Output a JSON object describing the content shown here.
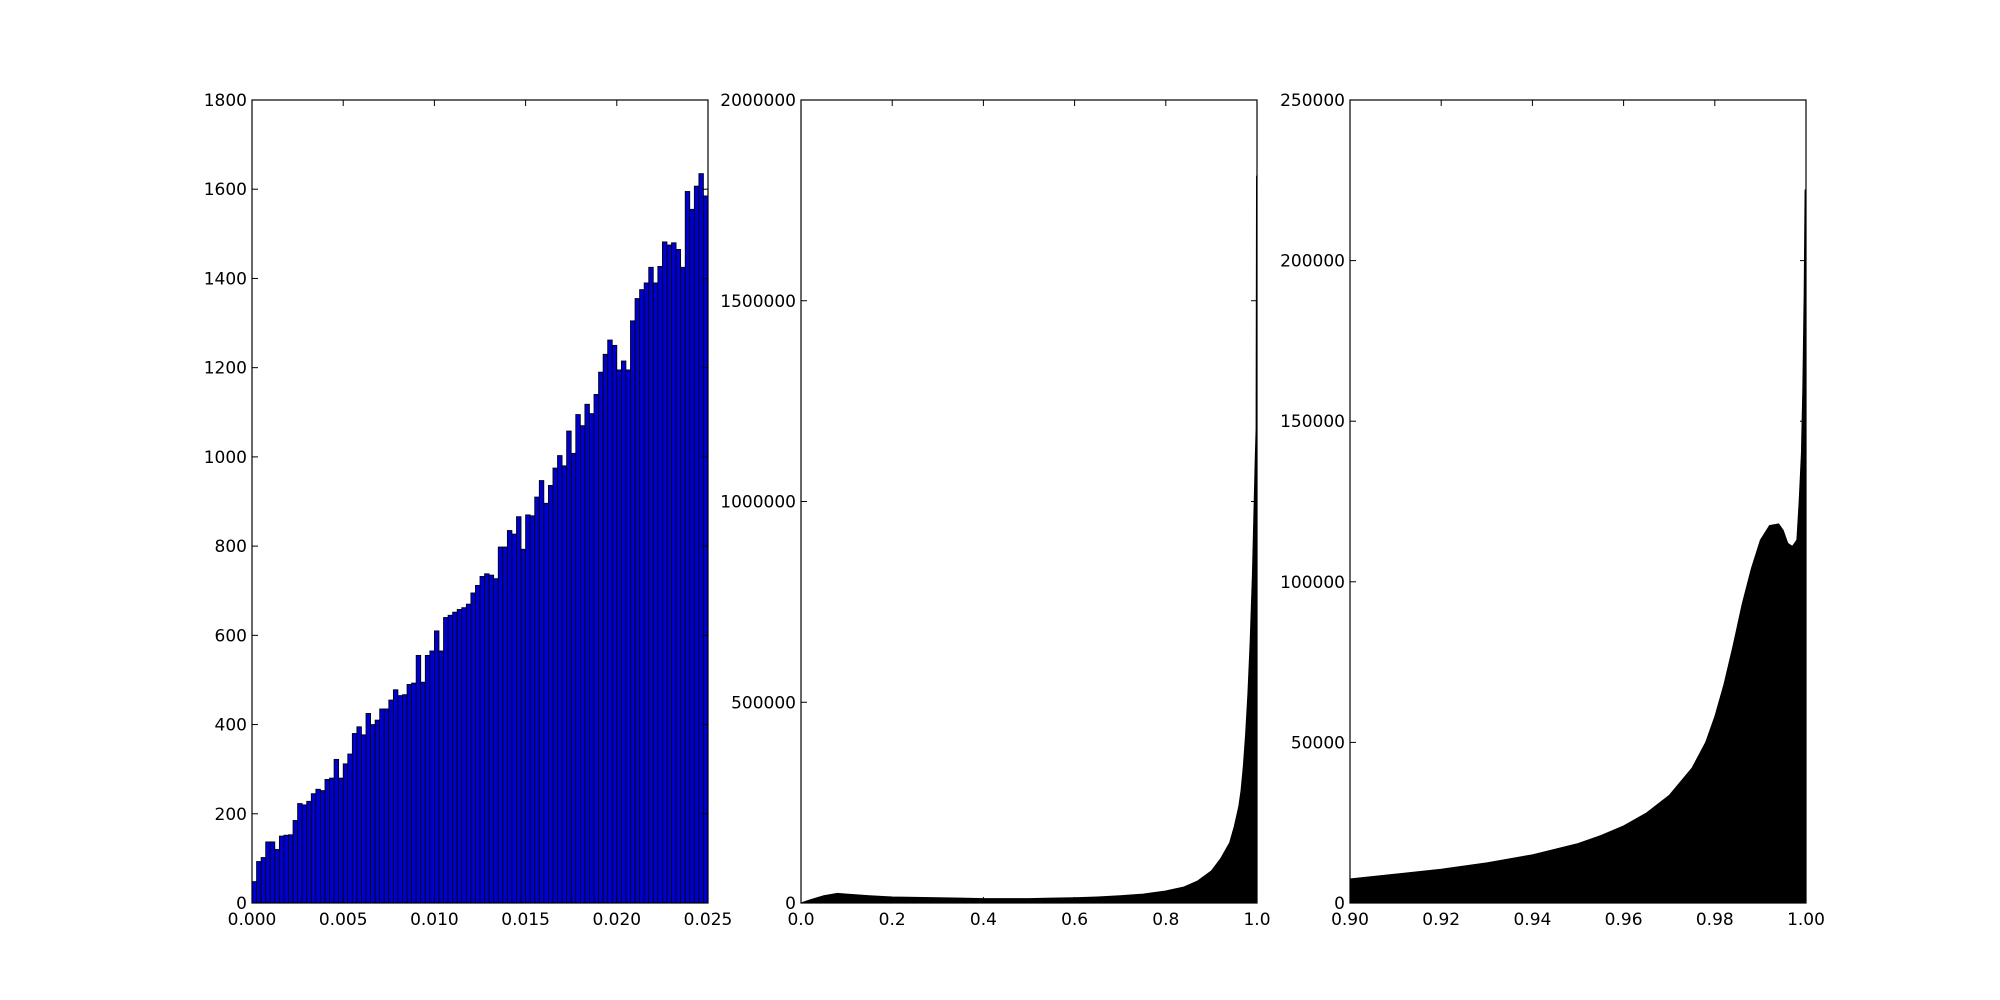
{
  "chart_data": [
    {
      "type": "bar",
      "title": "",
      "xlabel": "",
      "ylabel": "",
      "xlim": [
        0.0,
        0.025
      ],
      "ylim": [
        0,
        1800
      ],
      "xticks": [
        "0.000",
        "0.005",
        "0.010",
        "0.015",
        "0.020",
        "0.025"
      ],
      "yticks": [
        "0",
        "200",
        "400",
        "600",
        "800",
        "1000",
        "1200",
        "1400",
        "1600",
        "1800"
      ],
      "bin_width": 0.00025,
      "bar_color": "#0000cc",
      "edge_color": "#000000",
      "values": [
        48,
        93,
        102,
        137,
        137,
        120,
        150,
        152,
        153,
        185,
        223,
        220,
        228,
        245,
        255,
        252,
        277,
        280,
        322,
        280,
        312,
        334,
        380,
        395,
        377,
        425,
        400,
        410,
        435,
        435,
        455,
        478,
        465,
        467,
        490,
        493,
        555,
        495,
        555,
        565,
        610,
        565,
        640,
        645,
        652,
        658,
        662,
        670,
        695,
        712,
        732,
        738,
        735,
        727,
        798,
        798,
        835,
        827,
        866,
        793,
        870,
        868,
        910,
        947,
        896,
        936,
        975,
        1003,
        980,
        1058,
        1008,
        1095,
        1070,
        1118,
        1097,
        1140,
        1190,
        1230,
        1262,
        1250,
        1195,
        1215,
        1195,
        1305,
        1355,
        1375,
        1390,
        1425,
        1390,
        1427,
        1482,
        1475,
        1480,
        1465,
        1425,
        1595,
        1555,
        1607,
        1635,
        1585
      ]
    },
    {
      "type": "area",
      "title": "",
      "xlabel": "",
      "ylabel": "",
      "xlim": [
        0.0,
        1.0
      ],
      "ylim": [
        0,
        2000000
      ],
      "xticks": [
        "0.0",
        "0.2",
        "0.4",
        "0.6",
        "0.8",
        "1.0"
      ],
      "yticks": [
        "0",
        "500000",
        "1000000",
        "1500000",
        "2000000"
      ],
      "fill_color": "#000000",
      "x": [
        0.0,
        0.02,
        0.05,
        0.08,
        0.1,
        0.15,
        0.2,
        0.25,
        0.3,
        0.35,
        0.4,
        0.45,
        0.5,
        0.55,
        0.6,
        0.65,
        0.7,
        0.75,
        0.8,
        0.84,
        0.87,
        0.9,
        0.92,
        0.94,
        0.95,
        0.96,
        0.965,
        0.97,
        0.975,
        0.98,
        0.985,
        0.99,
        0.993,
        0.996,
        0.998,
        0.999,
        1.0
      ],
      "values": [
        0,
        8000,
        18000,
        24000,
        22000,
        18000,
        15000,
        14000,
        13000,
        12000,
        11000,
        11000,
        11000,
        12000,
        13000,
        15000,
        18000,
        22000,
        30000,
        40000,
        55000,
        80000,
        110000,
        150000,
        190000,
        240000,
        280000,
        340000,
        420000,
        520000,
        650000,
        820000,
        960000,
        1100000,
        1180000,
        1810000,
        1810000
      ]
    },
    {
      "type": "area",
      "title": "",
      "xlabel": "",
      "ylabel": "",
      "xlim": [
        0.9,
        1.0
      ],
      "ylim": [
        0,
        250000
      ],
      "xticks": [
        "0.90",
        "0.92",
        "0.94",
        "0.96",
        "0.98",
        "1.00"
      ],
      "yticks": [
        "0",
        "50000",
        "100000",
        "150000",
        "200000",
        "250000"
      ],
      "fill_color": "#000000",
      "x": [
        0.9,
        0.91,
        0.92,
        0.93,
        0.94,
        0.95,
        0.955,
        0.96,
        0.965,
        0.97,
        0.975,
        0.978,
        0.98,
        0.982,
        0.984,
        0.986,
        0.988,
        0.99,
        0.992,
        0.994,
        0.995,
        0.996,
        0.997,
        0.998,
        0.9985,
        0.999,
        0.9993,
        0.9996,
        0.9998,
        1.0
      ],
      "values": [
        7500,
        9000,
        10500,
        12500,
        15000,
        18500,
        21000,
        24000,
        28000,
        33500,
        42000,
        50000,
        58000,
        68000,
        80000,
        93000,
        104000,
        113000,
        117500,
        118000,
        116000,
        112000,
        111000,
        113000,
        125000,
        140000,
        160000,
        190000,
        222000,
        222000
      ]
    }
  ]
}
